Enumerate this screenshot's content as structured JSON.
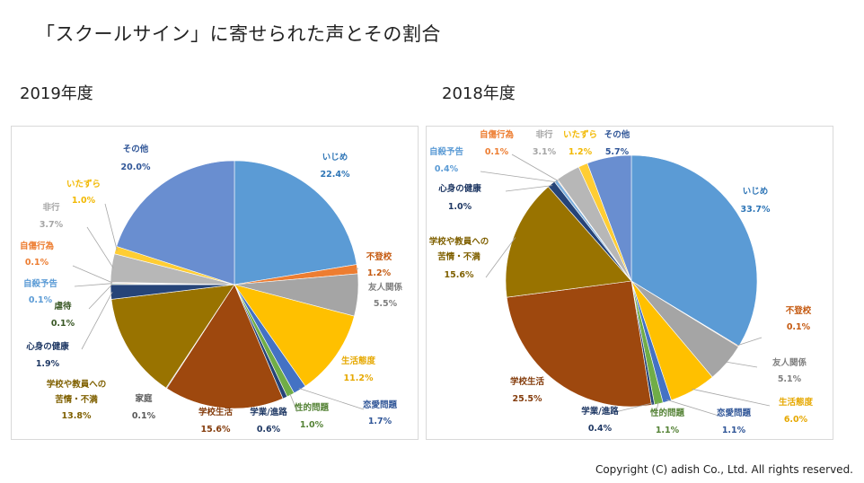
{
  "page": {
    "title": "「スクールサイン」に寄せられた声とその割合",
    "copyright": "Copyright (C) adish Co., Ltd. All rights reserved."
  },
  "chart_data": [
    {
      "type": "pie",
      "title": "2019年度",
      "categories": [
        "いじめ",
        "不登校",
        "友人関係",
        "生活態度",
        "恋愛問題",
        "性的問題",
        "学業/進路",
        "学校生活",
        "家庭",
        "学校や教員への苦情・不満",
        "心身の健康",
        "虐待",
        "自殺予告",
        "自傷行為",
        "非行",
        "いたずら",
        "その他"
      ],
      "values": [
        22.4,
        1.2,
        5.5,
        11.2,
        1.7,
        1.0,
        0.6,
        15.6,
        0.1,
        13.8,
        1.9,
        0.1,
        0.1,
        0.1,
        3.7,
        1.0,
        20.0
      ],
      "value_labels": [
        "22.4%",
        "1.2%",
        "5.5%",
        "11.2%",
        "1.7%",
        "1.0%",
        "0.6%",
        "15.6%",
        "0.1%",
        "13.8%",
        "1.9%",
        "0.1%",
        "0.1%",
        "0.1%",
        "3.7%",
        "1.0%",
        "20.0%"
      ],
      "colors": [
        "#5b9bd5",
        "#ed7d31",
        "#a5a5a5",
        "#ffc000",
        "#4472c4",
        "#70ad47",
        "#264478",
        "#9e480e",
        "#636363",
        "#997300",
        "#264478",
        "#43682b",
        "#7cafdd",
        "#f1975a",
        "#b7b7b7",
        "#ffcd33",
        "#698ed0"
      ],
      "label_colors": [
        "#2e75b6",
        "#c55a11",
        "#7f7f7f",
        "#e6a800",
        "#2f5597",
        "#548235",
        "#1f3864",
        "#843c0c",
        "#595959",
        "#7f6000",
        "#1f3864",
        "#375623",
        "#5b9bd5",
        "#ed7d31",
        "#a5a5a5",
        "#f2b800",
        "#2f5597"
      ]
    },
    {
      "type": "pie",
      "title": "2018年度",
      "categories": [
        "いじめ",
        "不登校",
        "友人関係",
        "生活態度",
        "恋愛問題",
        "性的問題",
        "学業/進路",
        "学校生活",
        "学校や教員への苦情・不満",
        "心身の健康",
        "自殺予告",
        "自傷行為",
        "非行",
        "いたずら",
        "その他"
      ],
      "values": [
        33.7,
        0.1,
        5.1,
        6.0,
        1.1,
        1.1,
        0.4,
        25.5,
        15.6,
        1.0,
        0.4,
        0.1,
        3.1,
        1.2,
        5.7
      ],
      "value_labels": [
        "33.7%",
        "0.1%",
        "5.1%",
        "6.0%",
        "1.1%",
        "1.1%",
        "0.4%",
        "25.5%",
        "15.6%",
        "1.0%",
        "0.4%",
        "0.1%",
        "3.1%",
        "1.2%",
        "5.7%"
      ],
      "colors": [
        "#5b9bd5",
        "#ed7d31",
        "#a5a5a5",
        "#ffc000",
        "#4472c4",
        "#70ad47",
        "#264478",
        "#9e480e",
        "#997300",
        "#264478",
        "#7cafdd",
        "#f1975a",
        "#b7b7b7",
        "#ffcd33",
        "#698ed0"
      ],
      "label_colors": [
        "#2e75b6",
        "#c55a11",
        "#7f7f7f",
        "#e6a800",
        "#2f5597",
        "#548235",
        "#1f3864",
        "#843c0c",
        "#7f6000",
        "#1f3864",
        "#5b9bd5",
        "#ed7d31",
        "#a5a5a5",
        "#f2b800",
        "#2f5597"
      ]
    }
  ]
}
